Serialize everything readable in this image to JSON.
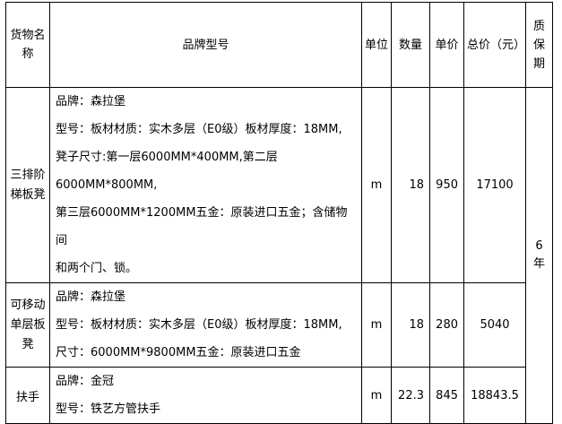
{
  "header": {
    "name": "货物名称",
    "model": "品牌型号",
    "unit": "单位",
    "qty": "数量",
    "price": "单价",
    "total": "总价（元）",
    "warranty": "质保期"
  },
  "rows": [
    {
      "name": "三排阶梯板凳",
      "lines": [
        "品牌：森拉堡",
        "型号：板材材质：实木多层（E0级）板材厚度：18MM,",
        "凳子尺寸:第一层6000MM*400MM,第二层6000MM*800MM,",
        "第三层6000MM*1200MM五金：原装进口五金；含储物间",
        "和两个门、锁。"
      ],
      "unit": "m",
      "qty": "18",
      "price": "950",
      "total": "17100"
    },
    {
      "name": "可移动单层板凳",
      "lines": [
        "品牌：森拉堡",
        "型号：板材材质：实木多层（E0级）板材厚度：18MM,",
        "尺寸：6000MM*9800MM五金：原装进口五金"
      ],
      "unit": "m",
      "qty": "18",
      "price": "280",
      "total": "5040"
    },
    {
      "name": "扶手",
      "lines": [
        "品牌：金冠",
        "型号：铁艺方管扶手"
      ],
      "unit": "m",
      "qty": "22.3",
      "price": "845",
      "total": "18843.5"
    }
  ],
  "warranty_value": "6年"
}
